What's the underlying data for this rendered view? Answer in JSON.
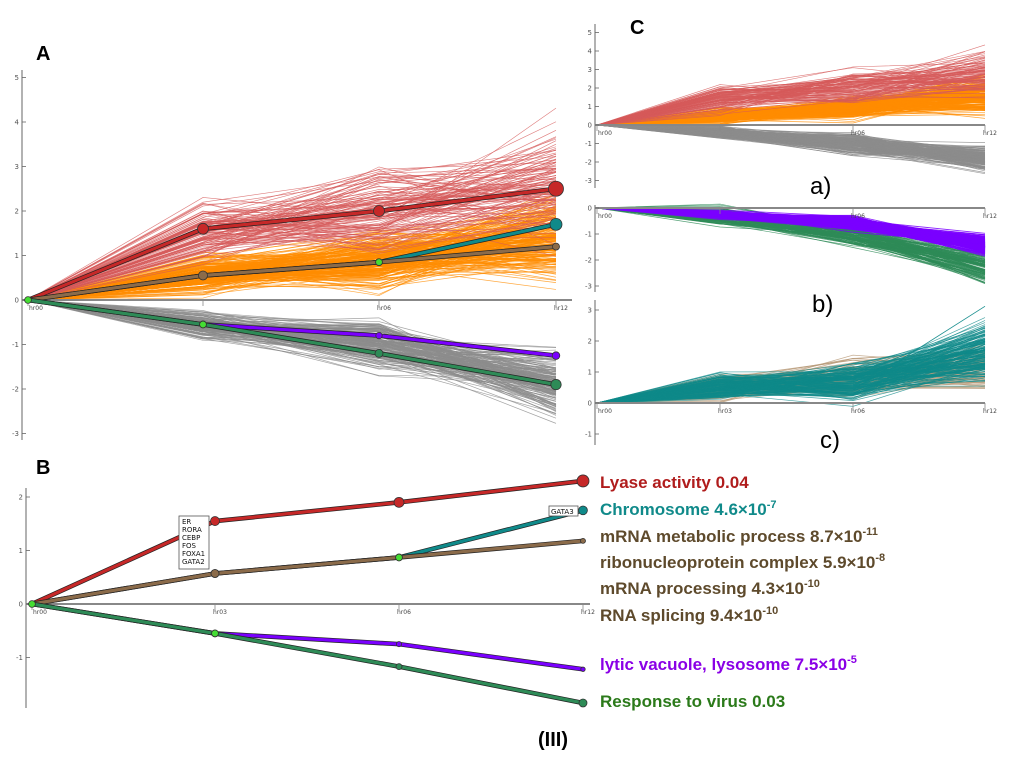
{
  "panels": {
    "A": "A",
    "B": "B",
    "C": "C"
  },
  "sub_labels": [
    "a)",
    "b)",
    "c)"
  ],
  "caption": "(III)",
  "colors": {
    "red": "#c62828",
    "red_light": "#d65a5a",
    "orange": "#ff8c00",
    "gray": "#8c8c8c",
    "purple": "#7a00ff",
    "green": "#2e8b57",
    "teal": "#0f8a8a",
    "brown": "#8b6b4a",
    "node_green": "#44dd33"
  },
  "chart_data": [
    {
      "id": "A",
      "type": "line",
      "x": [
        "hr00",
        "hr03",
        "hr06",
        "hr12"
      ],
      "ylim": [
        -3.5,
        5.5
      ],
      "yticks": [
        -3,
        -2,
        -1,
        0,
        1,
        2,
        3,
        4,
        5
      ],
      "xtick_labels": [
        "hr00",
        "",
        "hr06",
        "hr12"
      ],
      "series": [
        {
          "values": [
            0,
            1.6,
            2.0,
            2.5
          ],
          "color": "red"
        },
        {
          "values": [
            0,
            0.55,
            0.85,
            1.7
          ],
          "color": "teal"
        },
        {
          "values": [
            0,
            0.55,
            0.85,
            1.2
          ],
          "color": "brown"
        },
        {
          "values": [
            0,
            -0.55,
            -0.8,
            -1.25
          ],
          "color": "purple"
        },
        {
          "values": [
            0,
            -0.55,
            -1.2,
            -1.9
          ],
          "color": "green"
        }
      ]
    },
    {
      "id": "B",
      "type": "line",
      "x": [
        "hr00",
        "hr03",
        "hr06",
        "hr12"
      ],
      "ylim": [
        -2.1,
        2.4
      ],
      "yticks": [
        -2,
        -1,
        0,
        1,
        2
      ],
      "xtick_labels": [
        "hr00",
        "hr03",
        "hr06",
        "hr12"
      ],
      "series": [
        {
          "name": "Lyase activity 0.04",
          "values": [
            0,
            1.55,
            1.9,
            2.3
          ],
          "color": "red"
        },
        {
          "name": "Chromosome 4.6×10-7",
          "values": [
            0,
            0.57,
            0.87,
            1.75
          ],
          "color": "teal"
        },
        {
          "values": [
            0,
            0.57,
            0.87,
            1.18
          ],
          "color": "brown"
        },
        {
          "name": "lytic vacuole, lysosome 7.5×10-5",
          "values": [
            0,
            -0.55,
            -0.75,
            -1.22
          ],
          "color": "purple"
        },
        {
          "name": "Response to virus 0.03",
          "values": [
            0,
            -0.55,
            -1.17,
            -1.85
          ],
          "color": "green"
        }
      ],
      "tf_box_hr03": [
        "ER",
        "RORA",
        "CEBP",
        "FOS",
        "FOXA1",
        "GATA2"
      ],
      "tf_box_hr12": [
        "GATA3"
      ],
      "annotations": [
        {
          "base": "Lyase activity 0.04",
          "exp": "",
          "color": "#b01c1c"
        },
        {
          "base": "Chromosome 4.6×10",
          "exp": "-7",
          "color": "#108a8a"
        },
        {
          "base": "mRNA metabolic process 8.7×10",
          "exp": "-11",
          "color": "#5e4a2c"
        },
        {
          "base": "ribonucleoprotein complex 5.9×10",
          "exp": "-8",
          "color": "#5e4a2c"
        },
        {
          "base": "mRNA processing 4.3×10",
          "exp": "-10",
          "color": "#5e4a2c"
        },
        {
          "base": "RNA splicing 9.4×10",
          "exp": "-10",
          "color": "#5e4a2c"
        },
        {
          "base": "lytic vacuole, lysosome 7.5×10",
          "exp": "-5",
          "color": "#8a00e6"
        },
        {
          "base": "Response to virus 0.03",
          "exp": "",
          "color": "#2b7a1a"
        }
      ]
    },
    {
      "id": "C-a",
      "type": "line",
      "x": [
        "hr00",
        "hr03",
        "hr06",
        "hr12"
      ],
      "ylim": [
        -3.2,
        5.2
      ],
      "yticks": [
        -3,
        -2,
        -1,
        0,
        1,
        2,
        3,
        4,
        5
      ],
      "xtick_labels": [
        "hr00",
        "",
        "hr06",
        "hr12"
      ]
    },
    {
      "id": "C-b",
      "type": "line",
      "x": [
        "hr00",
        "hr03",
        "hr06",
        "hr12"
      ],
      "ylim": [
        -3.3,
        0.3
      ],
      "yticks": [
        -3,
        -2,
        -1,
        0
      ],
      "xtick_labels": [
        "hr00",
        "",
        "hr06",
        "hr12"
      ]
    },
    {
      "id": "C-c",
      "type": "line",
      "x": [
        "hr00",
        "hr03",
        "hr06",
        "hr12"
      ],
      "ylim": [
        -1.3,
        3.2
      ],
      "yticks": [
        -1,
        0,
        1,
        2,
        3
      ],
      "xtick_labels": [
        "hr00",
        "hr03",
        "hr06",
        "hr12"
      ]
    }
  ]
}
